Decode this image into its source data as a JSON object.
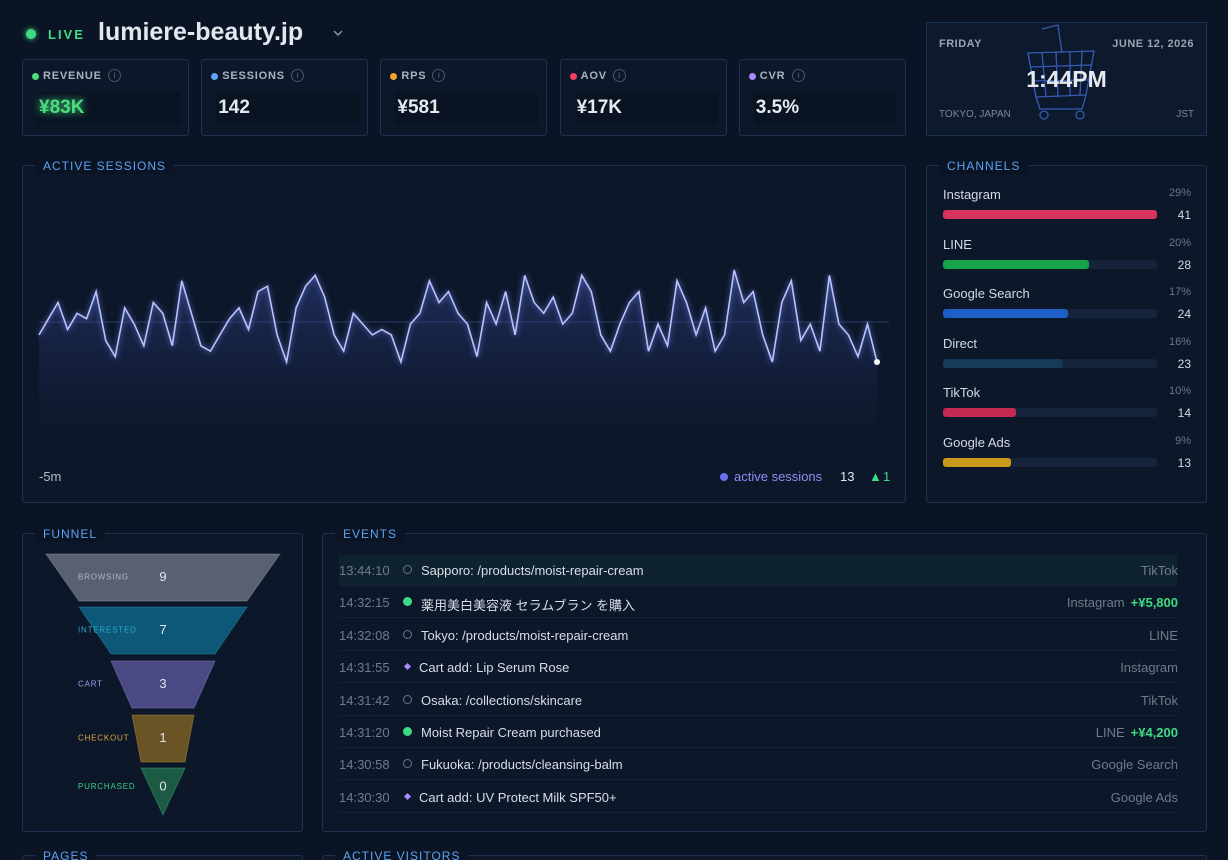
{
  "header": {
    "status": "LIVE",
    "site": "lumiere-beauty.jp"
  },
  "metrics": [
    {
      "label": "REVENUE",
      "value": "¥83K",
      "color": "#4ade80"
    },
    {
      "label": "SESSIONS",
      "value": "142",
      "color": "#60a5fa"
    },
    {
      "label": "RPS",
      "value": "¥581",
      "color": "#f5a524"
    },
    {
      "label": "AOV",
      "value": "¥17K",
      "color": "#f43f5e"
    },
    {
      "label": "CVR",
      "value": "3.5%",
      "color": "#a78bfa"
    }
  ],
  "clock": {
    "day": "FRIDAY",
    "date": "JUNE 12, 2026",
    "time": "1:44PM",
    "location": "TOKYO, JAPAN",
    "zone": "JST"
  },
  "sessions": {
    "title": "ACTIVE SESSIONS",
    "range_label": "-5m",
    "legend": "active sessions",
    "current": 13,
    "delta": 1,
    "values": [
      15.5,
      17,
      18.5,
      16,
      17.5,
      17,
      19.5,
      15,
      13.5,
      18,
      16.5,
      14.5,
      18.5,
      17.5,
      14.5,
      20.5,
      17.5,
      14.5,
      14,
      15.5,
      17,
      18,
      16,
      19.5,
      20,
      15.5,
      13,
      18,
      20,
      21,
      19,
      15.5,
      14,
      17.5,
      16.5,
      15.5,
      16,
      15.5,
      13,
      16.5,
      17.5,
      20.5,
      18.5,
      19.5,
      17.5,
      16.5,
      13.5,
      18.5,
      16.5,
      19.5,
      15.5,
      21,
      18.5,
      17.5,
      19,
      16.5,
      17.5,
      21,
      19.5,
      15.5,
      14,
      16.5,
      18.5,
      19.5,
      14,
      16.5,
      14.5,
      20.5,
      18.5,
      15.5,
      18,
      14,
      15.5,
      21.5,
      18.5,
      19.5,
      15.5,
      13,
      18.5,
      20.5,
      15,
      16.5,
      14,
      21,
      16.5,
      15.5,
      13.5,
      16.5,
      13
    ]
  },
  "channels": {
    "title": "CHANNELS",
    "items": [
      {
        "name": "Instagram",
        "share": "29%",
        "count": 41,
        "color": "#d6335f"
      },
      {
        "name": "LINE",
        "share": "20%",
        "count": 28,
        "color": "#16a34a"
      },
      {
        "name": "Google Search",
        "share": "17%",
        "count": 24,
        "color": "#1d5fc4"
      },
      {
        "name": "Direct",
        "share": "16%",
        "count": 23,
        "color": "#163a5a"
      },
      {
        "name": "TikTok",
        "share": "10%",
        "count": 14,
        "color": "#c42a52"
      },
      {
        "name": "Google Ads",
        "share": "9%",
        "count": 13,
        "color": "#c99a1a"
      }
    ]
  },
  "funnel": {
    "title": "FUNNEL",
    "stages": [
      {
        "label": "BROWSING",
        "count": 9,
        "color": "#596170",
        "text_color": "#aeb5c0"
      },
      {
        "label": "INTERESTED",
        "count": 7,
        "color": "#0d5877",
        "text_color": "#2aa6d4"
      },
      {
        "label": "CART",
        "count": 3,
        "color": "#4a4984",
        "text_color": "#a29ef0"
      },
      {
        "label": "CHECKOUT",
        "count": 1,
        "color": "#6a5425",
        "text_color": "#e0a93a"
      },
      {
        "label": "PURCHASED",
        "count": 0,
        "color": "#1c5a43",
        "text_color": "#3fcf8e"
      }
    ]
  },
  "events": {
    "title": "EVENTS",
    "rows": [
      {
        "time": "13:44:10",
        "kind": "view",
        "text": "Sapporo: /products/moist-repair-cream",
        "source": "TikTok"
      },
      {
        "time": "14:32:15",
        "kind": "purchase",
        "text": "薬用美白美容液 セラムブラン を購入",
        "source": "Instagram",
        "amount": "+¥5,800"
      },
      {
        "time": "14:32:08",
        "kind": "view",
        "text": "Tokyo: /products/moist-repair-cream",
        "source": "LINE"
      },
      {
        "time": "14:31:55",
        "kind": "cart",
        "text": "Cart add: Lip Serum Rose",
        "source": "Instagram"
      },
      {
        "time": "14:31:42",
        "kind": "view",
        "text": "Osaka: /collections/skincare",
        "source": "TikTok"
      },
      {
        "time": "14:31:20",
        "kind": "purchase",
        "text": "Moist Repair Cream purchased",
        "source": "LINE",
        "amount": "+¥4,200"
      },
      {
        "time": "14:30:58",
        "kind": "view",
        "text": "Fukuoka: /products/cleansing-balm",
        "source": "Google Search"
      },
      {
        "time": "14:30:30",
        "kind": "cart",
        "text": "Cart add: UV Protect Milk SPF50+",
        "source": "Google Ads"
      }
    ]
  },
  "bottom": {
    "pages": "PAGES",
    "visitors": "ACTIVE VISITORS"
  }
}
